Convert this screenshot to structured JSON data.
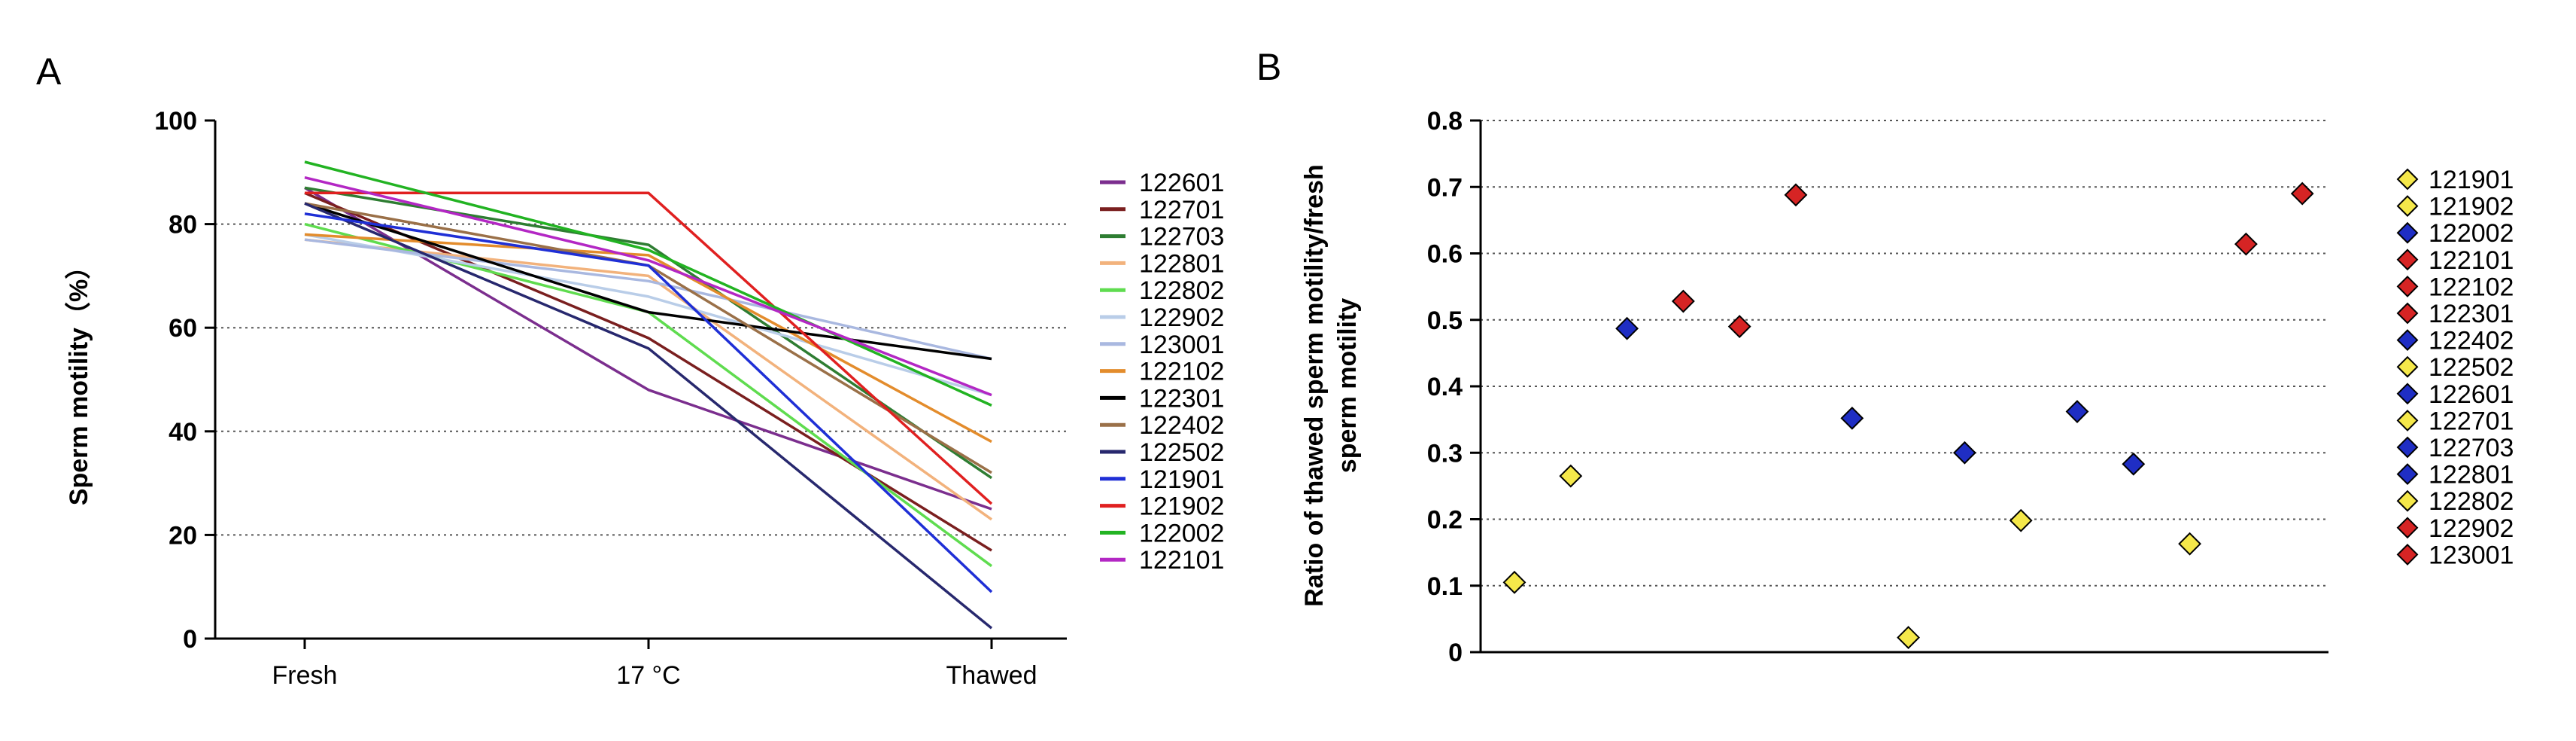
{
  "chart_data": [
    {
      "panel": "A",
      "type": "line",
      "title": "",
      "xlabel": "",
      "ylabel": "Sperm motility（%）",
      "ylim": [
        0,
        100
      ],
      "yticks": [
        "0",
        "20",
        "40",
        "60",
        "80",
        "100"
      ],
      "categories": [
        "Fresh",
        "17 °C",
        "Thawed"
      ],
      "grid": "horizontal dotted",
      "legend": "right",
      "series": [
        {
          "name": "122601",
          "color": "#7b2e8e",
          "values": [
            87,
            48,
            25
          ]
        },
        {
          "name": "122701",
          "color": "#7a1f1f",
          "values": [
            86,
            58,
            17
          ]
        },
        {
          "name": "122703",
          "color": "#2e7d32",
          "values": [
            87,
            76,
            31
          ]
        },
        {
          "name": "122801",
          "color": "#f2b27c",
          "values": [
            77,
            70,
            23
          ]
        },
        {
          "name": "122802",
          "color": "#5fdc4f",
          "values": [
            80,
            63,
            14
          ]
        },
        {
          "name": "122902",
          "color": "#b9cde8",
          "values": [
            78,
            66,
            47
          ]
        },
        {
          "name": "123001",
          "color": "#a9b8e0",
          "values": [
            77,
            69,
            54
          ]
        },
        {
          "name": "122102",
          "color": "#e38c2c",
          "values": [
            78,
            74,
            38
          ]
        },
        {
          "name": "122301",
          "color": "#000000",
          "values": [
            84,
            63,
            54
          ]
        },
        {
          "name": "122402",
          "color": "#9a7048",
          "values": [
            84,
            72,
            32
          ]
        },
        {
          "name": "122502",
          "color": "#27286e",
          "values": [
            84,
            56,
            2
          ]
        },
        {
          "name": "121901",
          "color": "#1f2fd6",
          "values": [
            82,
            72,
            9
          ]
        },
        {
          "name": "121902",
          "color": "#e02020",
          "values": [
            86,
            86,
            26
          ]
        },
        {
          "name": "122002",
          "color": "#22b322",
          "values": [
            92,
            75,
            45
          ]
        },
        {
          "name": "122101",
          "color": "#b327c4",
          "values": [
            89,
            73,
            47
          ]
        }
      ]
    },
    {
      "panel": "B",
      "type": "scatter",
      "title": "",
      "xlabel": "",
      "ylabel": "Ratio of thawed sperm motility/fresh sperm motility",
      "ylim": [
        0,
        0.8
      ],
      "yticks": [
        "0",
        "0.1",
        "0.2",
        "0.3",
        "0.4",
        "0.5",
        "0.6",
        "0.7",
        "0.8"
      ],
      "grid": "horizontal dotted",
      "legend": "right",
      "marker": "diamond",
      "x": [
        1,
        2,
        3,
        4,
        5,
        6,
        7,
        8,
        9,
        10,
        11,
        12,
        13,
        14,
        15
      ],
      "points": [
        {
          "name": "121901",
          "color": "#f5e84a",
          "value": 0.105
        },
        {
          "name": "121902",
          "color": "#f5e84a",
          "value": 0.265
        },
        {
          "name": "122002",
          "color": "#1f2ec4",
          "value": 0.487
        },
        {
          "name": "122101",
          "color": "#d62424",
          "value": 0.528
        },
        {
          "name": "122102",
          "color": "#d62424",
          "value": 0.49
        },
        {
          "name": "122301",
          "color": "#d62424",
          "value": 0.688
        },
        {
          "name": "122402",
          "color": "#1f2ec4",
          "value": 0.352
        },
        {
          "name": "122502",
          "color": "#f5e84a",
          "value": 0.022
        },
        {
          "name": "122601",
          "color": "#1f2ec4",
          "value": 0.3
        },
        {
          "name": "122701",
          "color": "#f5e84a",
          "value": 0.198
        },
        {
          "name": "122703",
          "color": "#1f2ec4",
          "value": 0.362
        },
        {
          "name": "122801",
          "color": "#1f2ec4",
          "value": 0.283
        },
        {
          "name": "122802",
          "color": "#f5e84a",
          "value": 0.163
        },
        {
          "name": "122902",
          "color": "#d62424",
          "value": 0.614
        },
        {
          "name": "123001",
          "color": "#d62424",
          "value": 0.69
        }
      ]
    }
  ]
}
